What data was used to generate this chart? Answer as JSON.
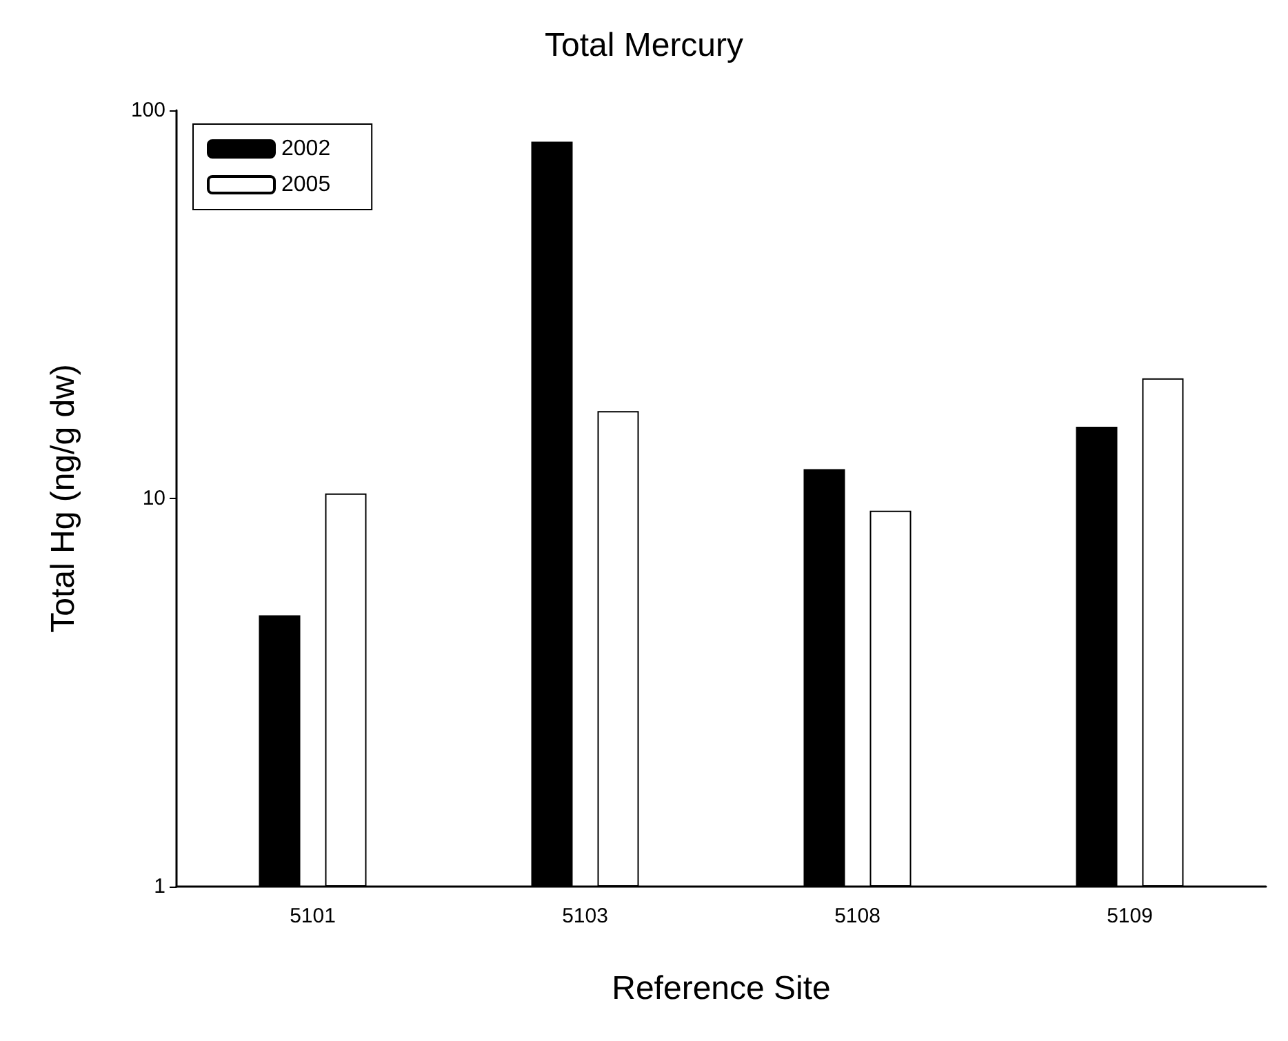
{
  "chart_data": {
    "type": "bar",
    "title": "Total Mercury",
    "xlabel": "Reference Site",
    "ylabel": "Total Hg (ng/g dw)",
    "categories": [
      "5101",
      "5103",
      "5108",
      "5109"
    ],
    "series": [
      {
        "name": "2002",
        "color": "#000000",
        "values": [
          5.0,
          83,
          11.9,
          15.3
        ]
      },
      {
        "name": "2005",
        "color": "#ffffff",
        "values": [
          10.3,
          16.8,
          9.3,
          20.4
        ]
      }
    ],
    "ylim": [
      1,
      100
    ],
    "yticks": [
      1,
      10,
      100
    ],
    "log": true,
    "grid": false,
    "legend": "top left"
  }
}
